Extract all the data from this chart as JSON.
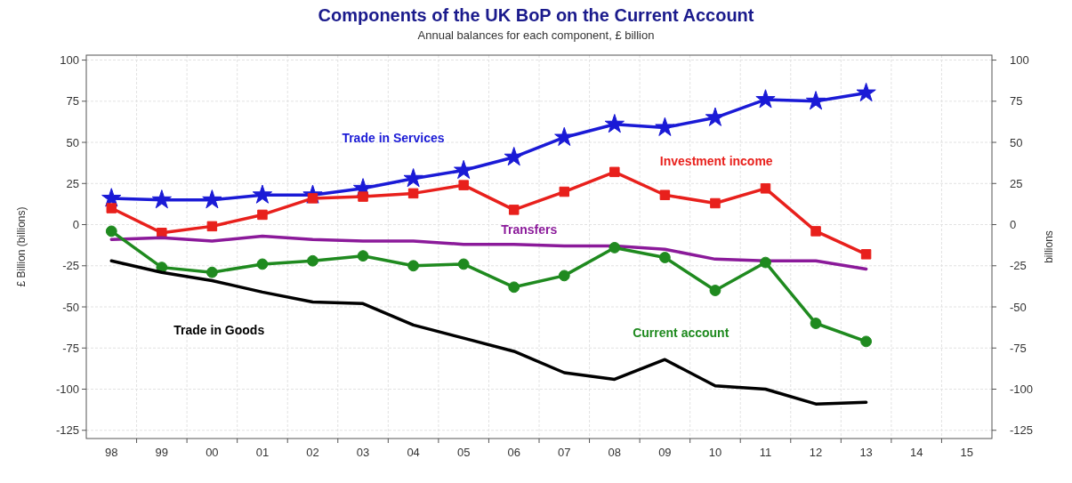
{
  "chart_data": {
    "type": "line",
    "title": "Components of the UK BoP on the Current Account",
    "subtitle": "Annual balances for each component, £ billion",
    "ylabel": "£ Billion (billions)",
    "y2label": "billions",
    "categories": [
      "98",
      "99",
      "00",
      "01",
      "02",
      "03",
      "04",
      "05",
      "06",
      "07",
      "08",
      "09",
      "10",
      "11",
      "12",
      "13",
      "14",
      "15"
    ],
    "series": [
      {
        "name": "Trade in Services",
        "color": "#1a1ad6",
        "marker": "star",
        "values": [
          16,
          15,
          15,
          18,
          18,
          22,
          28,
          33,
          41,
          53,
          61,
          59,
          65,
          76,
          75,
          80,
          null,
          null
        ]
      },
      {
        "name": "Investment income",
        "color": "#e8201c",
        "marker": "square",
        "values": [
          10,
          -5,
          -1,
          6,
          16,
          17,
          19,
          24,
          9,
          20,
          32,
          18,
          13,
          22,
          -4,
          -18,
          null,
          null
        ]
      },
      {
        "name": "Transfers",
        "color": "#8b1a9a",
        "marker": "none",
        "values": [
          -9,
          -8,
          -10,
          -7,
          -9,
          -10,
          -10,
          -12,
          -12,
          -13,
          -13,
          -15,
          -21,
          -22,
          -22,
          -27,
          null,
          null
        ]
      },
      {
        "name": "Current account",
        "color": "#1f8a1f",
        "marker": "circle",
        "values": [
          -4,
          -26,
          -29,
          -24,
          -22,
          -19,
          -25,
          -24,
          -38,
          -31,
          -14,
          -20,
          -40,
          -23,
          -60,
          -71,
          null,
          null
        ]
      },
      {
        "name": "Trade in Goods",
        "color": "#000000",
        "marker": "none",
        "values": [
          -22,
          -29,
          -34,
          -41,
          -47,
          -48,
          -61,
          -69,
          -77,
          -90,
          -94,
          -82,
          -98,
          -100,
          -109,
          -108,
          null,
          null
        ]
      }
    ],
    "ylim": [
      -130,
      103
    ],
    "yticks": [
      -125,
      -100,
      -75,
      -50,
      -25,
      0,
      25,
      50,
      75,
      100
    ],
    "y2lim": [
      -130,
      103
    ],
    "y2ticks": [
      -125,
      -100,
      -75,
      -50,
      -25,
      0,
      25,
      50,
      75,
      100
    ],
    "grid": true
  }
}
